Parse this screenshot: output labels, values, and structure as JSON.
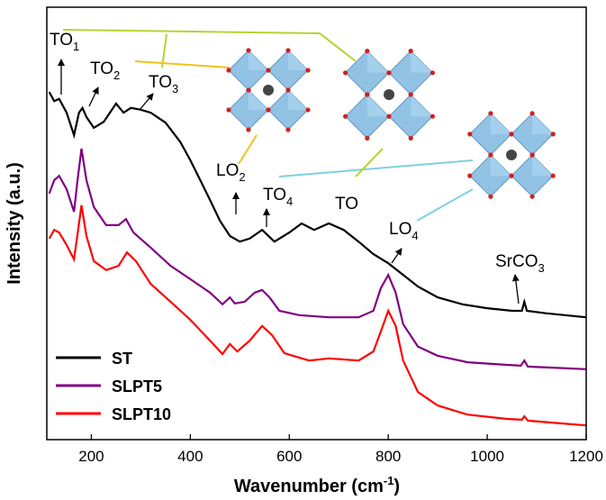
{
  "chart_data": {
    "type": "line",
    "x_label": "Wavenumber (cm",
    "x_label_sup": "-1",
    "x_label_end": ")",
    "y_label": "Intensity (a.u.)",
    "xlim": [
      110,
      1200
    ],
    "xticks": [
      200,
      400,
      600,
      800,
      1000,
      1200
    ],
    "ylim": [
      0,
      100
    ],
    "legend": "lower left",
    "series": [
      {
        "name": "ST",
        "color": "#000000",
        "x": [
          115,
          125,
          135,
          150,
          165,
          175,
          182,
          190,
          205,
          225,
          250,
          265,
          280,
          300,
          320,
          350,
          380,
          400,
          420,
          440,
          460,
          480,
          500,
          520,
          545,
          570,
          600,
          625,
          650,
          680,
          710,
          740,
          770,
          800,
          830,
          860,
          900,
          950,
          1000,
          1050,
          1070,
          1075,
          1080,
          1120,
          1200
        ],
        "values": [
          80.4,
          78.3,
          78.8,
          75.6,
          70.4,
          75.6,
          76.7,
          74.6,
          72.1,
          73.5,
          77.7,
          75.6,
          76.7,
          76.3,
          75.6,
          73.3,
          68.8,
          64.6,
          60,
          55.4,
          50.6,
          47.1,
          45.8,
          46.5,
          48.5,
          45.8,
          47.9,
          50,
          48.5,
          50,
          48.5,
          45.8,
          42.9,
          40.8,
          38.1,
          35.4,
          32.9,
          31.3,
          30.4,
          29.8,
          29.8,
          31.9,
          29.8,
          29.2,
          28.3
        ]
      },
      {
        "name": "SLPT5",
        "color": "#800080",
        "x": [
          115,
          125,
          135,
          150,
          165,
          172,
          180,
          190,
          205,
          230,
          255,
          270,
          285,
          320,
          360,
          400,
          440,
          465,
          480,
          490,
          510,
          530,
          545,
          560,
          580,
          620,
          680,
          740,
          770,
          785,
          800,
          815,
          830,
          860,
          900,
          960,
          1040,
          1068,
          1075,
          1082,
          1200
        ],
        "values": [
          56.9,
          60,
          61,
          57.9,
          52.7,
          60,
          67.3,
          60,
          53.8,
          49.6,
          49.6,
          51,
          47.9,
          44.4,
          40.2,
          37.1,
          34,
          31.3,
          32.9,
          31.5,
          31.9,
          34,
          34.6,
          32.9,
          29.8,
          28.8,
          28.3,
          28.3,
          29.8,
          35,
          38.1,
          34,
          26.7,
          21.5,
          19.4,
          17.9,
          17.3,
          17.1,
          18.3,
          16.9,
          16.3
        ]
      },
      {
        "name": "SLPT10",
        "color": "#ff0000",
        "x": [
          115,
          125,
          135,
          150,
          165,
          172,
          180,
          190,
          205,
          230,
          255,
          272,
          290,
          320,
          360,
          400,
          440,
          465,
          480,
          495,
          520,
          545,
          565,
          590,
          640,
          680,
          740,
          770,
          785,
          800,
          815,
          830,
          860,
          900,
          960,
          1040,
          1070,
          1075,
          1082,
          1200
        ],
        "values": [
          46.5,
          48.5,
          47.9,
          45,
          41.7,
          47.5,
          54.2,
          47.1,
          41.3,
          39.2,
          40.2,
          43.3,
          41.3,
          36,
          31.9,
          27.7,
          22.9,
          19.8,
          22.1,
          20.4,
          22.9,
          26.3,
          24.2,
          20,
          18.3,
          18.8,
          18.3,
          20.4,
          25,
          29.8,
          26.3,
          18.3,
          11,
          7.9,
          5.8,
          4.8,
          4.6,
          5.4,
          4.4,
          3.3
        ]
      }
    ],
    "annotations": [
      {
        "text": "TO",
        "sub": "1"
      },
      {
        "text": "TO",
        "sub": "2"
      },
      {
        "text": "TO",
        "sub": "3"
      },
      {
        "text": "LO",
        "sub": "2"
      },
      {
        "text": "TO",
        "sub": "4"
      },
      {
        "text": "TO"
      },
      {
        "text": "LO",
        "sub": "4"
      },
      {
        "text": "SrCO",
        "sub": "3"
      }
    ]
  }
}
